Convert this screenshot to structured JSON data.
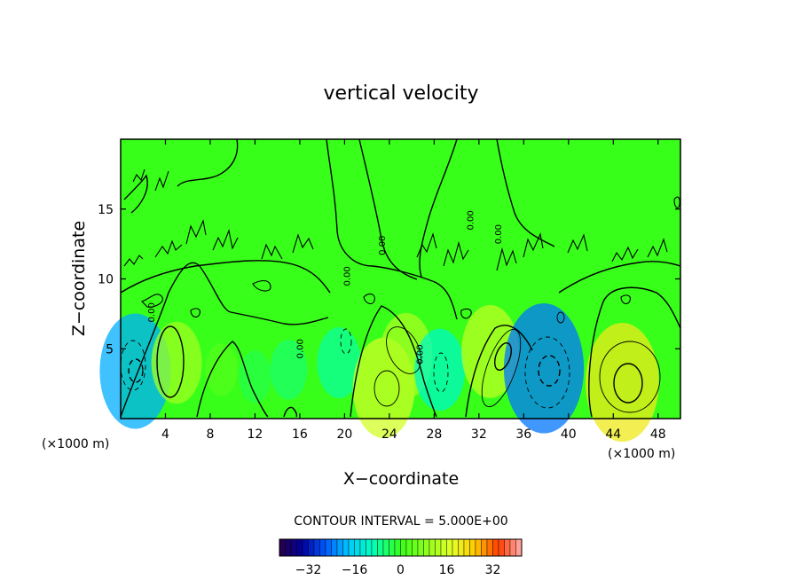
{
  "chart_data": {
    "type": "contour",
    "title": "vertical velocity",
    "xlabel": "X−coordinate",
    "ylabel": "Z−coordinate",
    "x_unit_left": "(×1000 m)",
    "x_unit_right": "(×1000 m)",
    "xlim": [
      0,
      50
    ],
    "ylim": [
      0,
      20
    ],
    "x_ticks": [
      4,
      8,
      12,
      16,
      20,
      24,
      28,
      32,
      36,
      40,
      44,
      48
    ],
    "y_ticks": [
      5,
      10,
      15
    ],
    "contour_labels": [
      {
        "text": "0.00",
        "x": 3.0,
        "y": 7.6
      },
      {
        "text": "0.00",
        "x": 16.3,
        "y": 5.0
      },
      {
        "text": "0.00",
        "x": 20.5,
        "y": 10.2
      },
      {
        "text": "0.00",
        "x": 23.6,
        "y": 12.4
      },
      {
        "text": "0.00",
        "x": 27.0,
        "y": 4.6
      },
      {
        "text": "0.00",
        "x": 31.5,
        "y": 14.2
      },
      {
        "text": "0.00",
        "x": 34.0,
        "y": 13.2
      }
    ],
    "cells": [
      {
        "cx": 1.3,
        "cy": 3.4,
        "v": -20
      },
      {
        "cx": 5.0,
        "cy": 4.0,
        "v": 11
      },
      {
        "cx": 9.0,
        "cy": 3.5,
        "v": 3
      },
      {
        "cx": 12.0,
        "cy": 3.0,
        "v": -3
      },
      {
        "cx": 15.0,
        "cy": 3.5,
        "v": -5
      },
      {
        "cx": 19.5,
        "cy": 4.0,
        "v": -8
      },
      {
        "cx": 23.5,
        "cy": 2.2,
        "v": 16
      },
      {
        "cx": 25.5,
        "cy": 4.5,
        "v": 12
      },
      {
        "cx": 28.5,
        "cy": 3.5,
        "v": -11
      },
      {
        "cx": 33.0,
        "cy": 4.8,
        "v": 14
      },
      {
        "cx": 37.8,
        "cy": 3.6,
        "v": -24
      },
      {
        "cx": 44.8,
        "cy": 2.6,
        "v": 21
      }
    ],
    "colorbar": {
      "title": "CONTOUR INTERVAL = 5.000E+00",
      "range": [
        -42,
        42
      ],
      "tick_values": [
        -32,
        -16,
        0,
        16,
        32
      ],
      "tick_labels": [
        "−32",
        "−16",
        "0",
        "16",
        "32"
      ]
    }
  }
}
